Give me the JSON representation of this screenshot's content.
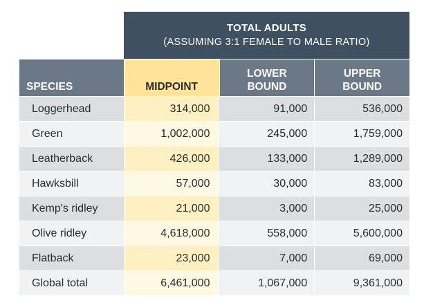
{
  "chart_data": {
    "type": "table",
    "title": "TOTAL ADULTS",
    "subtitle": "(ASSUMING 3:1 FEMALE TO MALE RATIO)",
    "columns": [
      {
        "line1": "SPECIES",
        "line2": ""
      },
      {
        "line1": "MIDPOINT",
        "line2": ""
      },
      {
        "line1": "LOWER",
        "line2": "BOUND"
      },
      {
        "line1": "UPPER",
        "line2": "BOUND"
      }
    ],
    "rows": [
      {
        "species": "Loggerhead",
        "midpoint": "314,000",
        "lower": "91,000",
        "upper": "536,000"
      },
      {
        "species": "Green",
        "midpoint": "1,002,000",
        "lower": "245,000",
        "upper": "1,759,000"
      },
      {
        "species": "Leatherback",
        "midpoint": "426,000",
        "lower": "133,000",
        "upper": "1,289,000"
      },
      {
        "species": "Hawksbill",
        "midpoint": "57,000",
        "lower": "30,000",
        "upper": "83,000"
      },
      {
        "species": "Kemp's ridley",
        "midpoint": "21,000",
        "lower": "3,000",
        "upper": "25,000"
      },
      {
        "species": "Olive ridley",
        "midpoint": "4,618,000",
        "lower": "558,000",
        "upper": "5,600,000"
      },
      {
        "species": "Flatback",
        "midpoint": "23,000",
        "lower": "7,000",
        "upper": "69,000"
      },
      {
        "species": "Global total",
        "midpoint": "6,461,000",
        "lower": "1,067,000",
        "upper": "9,361,000"
      }
    ],
    "colors": {
      "title_bg": "#3f5060",
      "header_bg": "#6b7986",
      "midpoint_header_bg": "#ffe49a",
      "row_odd": "#dcdfe2",
      "row_even": "#f1f2f3",
      "midpoint_odd": "#fff0c4",
      "midpoint_even": "#fff8e3"
    }
  }
}
